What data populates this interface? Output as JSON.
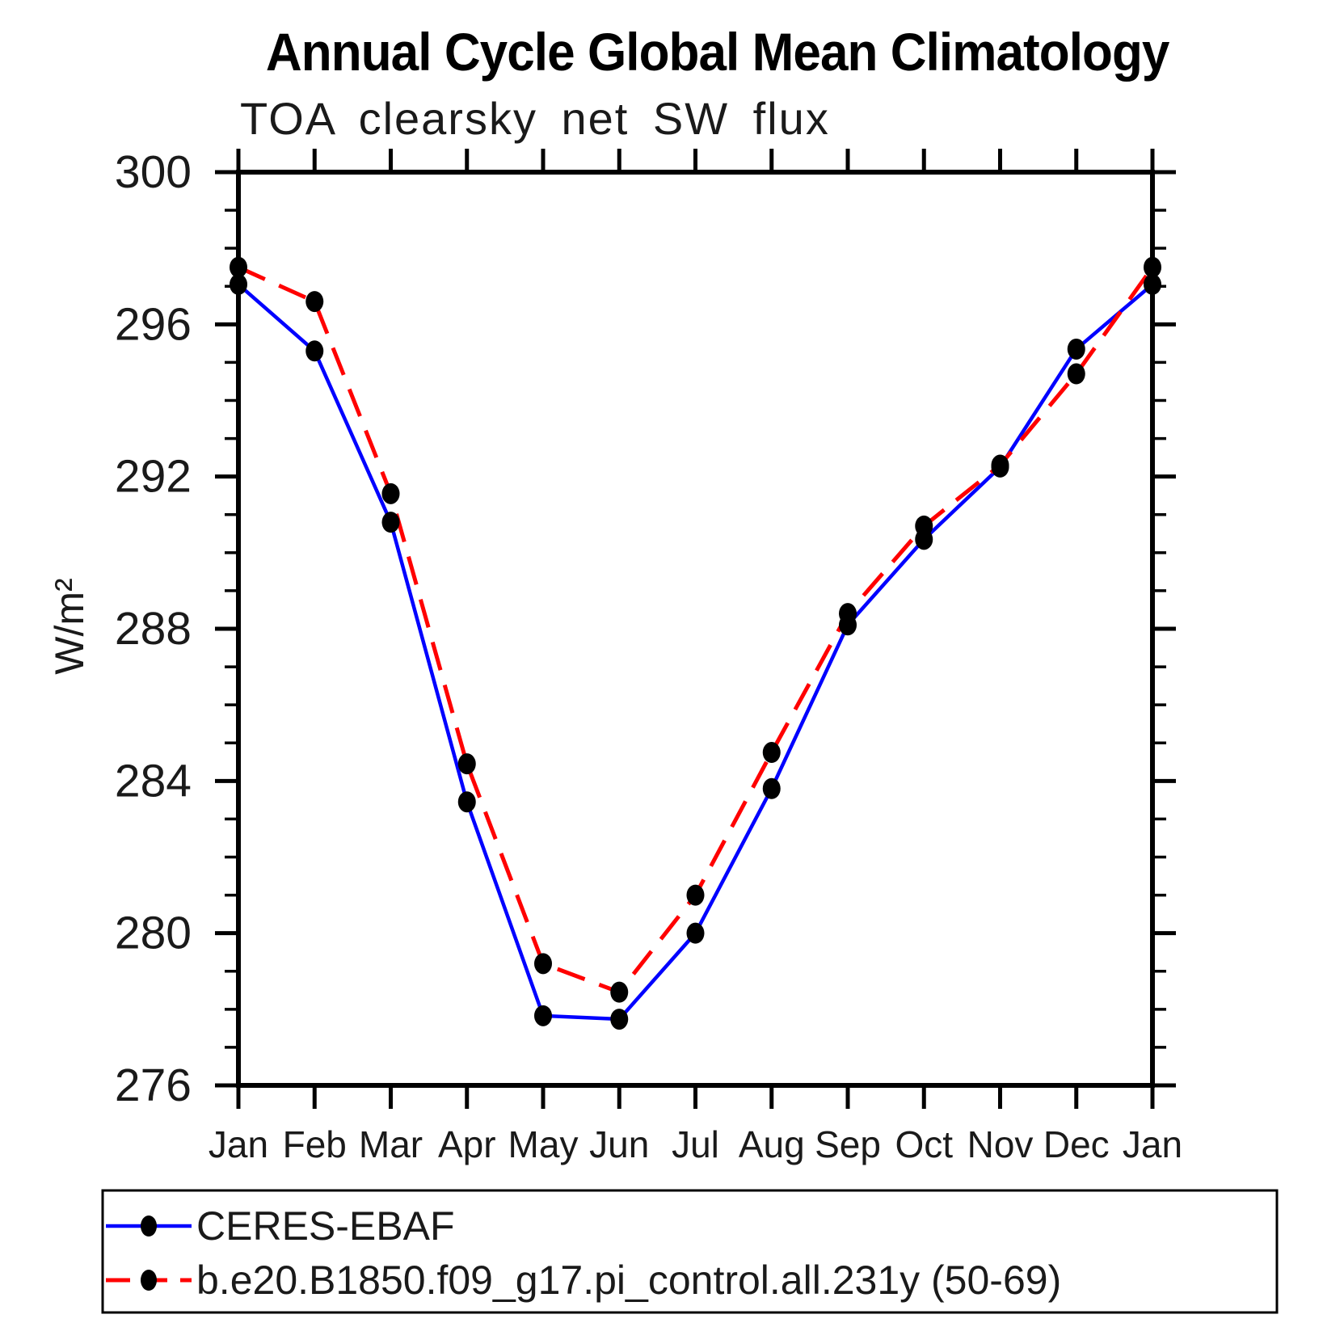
{
  "chart_data": {
    "type": "line",
    "title": "Annual Cycle Global Mean Climatology",
    "subtitle": "TOA clearsky net SW flux",
    "ylabel": "W/m²",
    "xlabel": "",
    "categories": [
      "Jan",
      "Feb",
      "Mar",
      "Apr",
      "May",
      "Jun",
      "Jul",
      "Aug",
      "Sep",
      "Oct",
      "Nov",
      "Dec",
      "Jan"
    ],
    "ylim": [
      276,
      300
    ],
    "ytick_major": [
      300,
      296,
      292,
      288,
      284,
      280,
      276
    ],
    "ytick_minor_interval": 1,
    "grid": false,
    "legend_position": "bottom-box",
    "axis_color": "#000000",
    "marker_color": "#000000",
    "series": [
      {
        "name": "CERES-EBAF",
        "color": "#0000ff",
        "style": "solid",
        "marker": "filled-circle",
        "values": [
          297.05,
          295.3,
          290.8,
          283.45,
          277.83,
          277.74,
          280.0,
          283.8,
          288.1,
          290.35,
          292.25,
          295.35,
          297.05
        ]
      },
      {
        "name": "b.e20.B1850.f09_g17.pi_control.all.231y (50-69)",
        "color": "#ff0000",
        "style": "dashed",
        "marker": "filled-circle",
        "values": [
          297.5,
          296.6,
          291.55,
          284.45,
          279.2,
          278.45,
          281.0,
          284.75,
          288.4,
          290.7,
          292.3,
          294.7,
          297.5
        ]
      }
    ]
  }
}
